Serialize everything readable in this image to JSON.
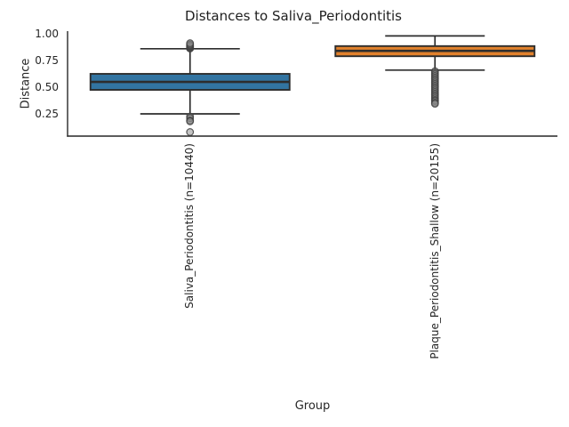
{
  "chart_data": {
    "type": "boxplot",
    "title": "Distances to Saliva_Periodontitis",
    "xlabel": "Group",
    "ylabel": "Distance",
    "ylim": [
      0.042,
      1.025
    ],
    "grid": false,
    "legend": "none",
    "ytick_labels": [
      "1.00",
      "0.75",
      "0.50",
      "0.25"
    ],
    "ytick_values": [
      1.0,
      0.75,
      0.5,
      0.25
    ],
    "categories": [
      "Saliva_Periodontitis (n=10440)",
      "Plaque_Periodontitis_Shallow (n=20155)"
    ],
    "series": [
      {
        "name": "Saliva_Periodontitis (n=10440)",
        "color": "#3274a1",
        "q1": 0.475,
        "median": 0.55,
        "q3": 0.625,
        "whisker_low": 0.25,
        "whisker_high": 0.86,
        "outliers": [
          0.862,
          0.868,
          0.874,
          0.88,
          0.886,
          0.892,
          0.9,
          0.912,
          0.225,
          0.21,
          0.19,
          0.18,
          0.08
        ]
      },
      {
        "name": "Plaque_Periodontitis_Shallow (n=20155)",
        "color": "#e1812c",
        "q1": 0.79,
        "median": 0.84,
        "q3": 0.885,
        "whisker_low": 0.66,
        "whisker_high": 0.98,
        "outliers": [
          0.65,
          0.635,
          0.62,
          0.605,
          0.59,
          0.575,
          0.56,
          0.545,
          0.53,
          0.515,
          0.5,
          0.485,
          0.47,
          0.455,
          0.44,
          0.425,
          0.41,
          0.395,
          0.38,
          0.37,
          0.355,
          0.345
        ]
      }
    ],
    "line_color": "#2d2d2d",
    "spine_color": "#262626",
    "flier_fill": "#8a8a8a",
    "flier_edge": "#3f3f3f"
  }
}
